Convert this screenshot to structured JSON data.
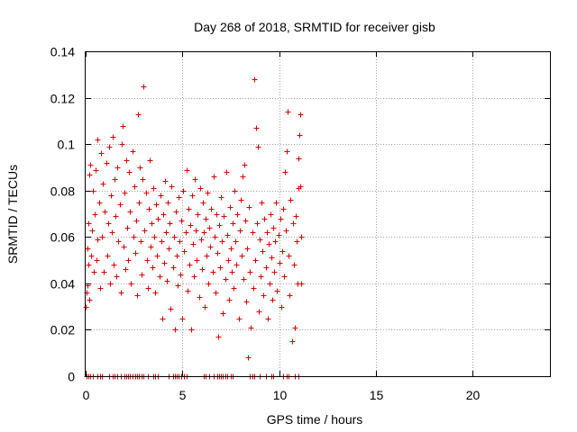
{
  "chart_data": {
    "type": "scatter",
    "title": "Day 268 of 2018, SRMTID for receiver gisb",
    "xlabel": "GPS time / hours",
    "ylabel": "SRMTID / TECUs",
    "xlim": [
      0,
      24
    ],
    "ylim": [
      0,
      0.14
    ],
    "x_ticks": [
      0,
      5,
      10,
      15,
      20
    ],
    "y_ticks": [
      0,
      0.02,
      0.04,
      0.06,
      0.08,
      0.1,
      0.12,
      0.14
    ],
    "x_tick_labels": [
      "0",
      "5",
      "10",
      "15",
      "20"
    ],
    "y_tick_labels": [
      "0",
      "0.02",
      "0.04",
      "0.06",
      "0.08",
      "0.1",
      "0.12",
      "0.14"
    ],
    "grid": true,
    "marker": "+",
    "marker_color": "#dd0000",
    "series": [
      {
        "points": [
          [
            0.02,
            0.03
          ],
          [
            0.05,
            0.036
          ],
          [
            0.08,
            0.039
          ],
          [
            0.1,
            0.055
          ],
          [
            0.12,
            0.066
          ],
          [
            0.15,
            0.048
          ],
          [
            0.18,
            0.087
          ],
          [
            0.2,
            0.033
          ],
          [
            0.25,
            0.091
          ],
          [
            0.28,
            0.052
          ],
          [
            0.32,
            0.063
          ],
          [
            0.35,
            0.08
          ],
          [
            0.4,
            0.045
          ],
          [
            0.45,
            0.07
          ],
          [
            0.5,
            0.089
          ],
          [
            0.55,
            0.05
          ],
          [
            0.6,
            0.102
          ],
          [
            0.62,
            0.059
          ],
          [
            0.7,
            0.075
          ],
          [
            0.75,
            0.038
          ],
          [
            0.8,
            0.096
          ],
          [
            0.85,
            0.06
          ],
          [
            0.9,
            0.083
          ],
          [
            0.95,
            0.045
          ],
          [
            1.0,
            0.071
          ],
          [
            1.05,
            0.092
          ],
          [
            1.1,
            0.052
          ],
          [
            1.15,
            0.066
          ],
          [
            1.2,
            0.099
          ],
          [
            1.25,
            0.04
          ],
          [
            1.3,
            0.078
          ],
          [
            1.35,
            0.062
          ],
          [
            1.4,
            0.103
          ],
          [
            1.45,
            0.048
          ],
          [
            1.5,
            0.085
          ],
          [
            1.55,
            0.069
          ],
          [
            1.6,
            0.043
          ],
          [
            1.65,
            0.09
          ],
          [
            1.7,
            0.058
          ],
          [
            1.75,
            0.074
          ],
          [
            1.8,
            0.036
          ],
          [
            1.85,
            0.1
          ],
          [
            1.9,
            0.108
          ],
          [
            1.95,
            0.056
          ],
          [
            2.0,
            0.079
          ],
          [
            2.05,
            0.046
          ],
          [
            2.1,
            0.093
          ],
          [
            2.15,
            0.064
          ],
          [
            2.2,
            0.05
          ],
          [
            2.25,
            0.088
          ],
          [
            2.3,
            0.071
          ],
          [
            2.35,
            0.04
          ],
          [
            2.4,
            0.097
          ],
          [
            2.45,
            0.06
          ],
          [
            2.5,
            0.082
          ],
          [
            2.55,
            0.053
          ],
          [
            2.6,
            0.067
          ],
          [
            2.65,
            0.035
          ],
          [
            2.7,
            0.113
          ],
          [
            2.75,
            0.075
          ],
          [
            2.8,
            0.09
          ],
          [
            2.85,
            0.058
          ],
          [
            2.9,
            0.044
          ],
          [
            2.95,
            0.085
          ],
          [
            3.0,
            0.125
          ],
          [
            3.05,
            0.063
          ],
          [
            3.1,
            0.079
          ],
          [
            3.15,
            0.05
          ],
          [
            3.2,
            0.038
          ],
          [
            3.25,
            0.072
          ],
          [
            3.3,
            0.093
          ],
          [
            3.35,
            0.056
          ],
          [
            3.4,
            0.066
          ],
          [
            3.45,
            0.047
          ],
          [
            3.5,
            0.081
          ],
          [
            3.55,
            0.06
          ],
          [
            3.6,
            0.036
          ],
          [
            3.65,
            0.074
          ],
          [
            3.7,
            0.052
          ],
          [
            3.75,
            0.068
          ],
          [
            3.8,
            0.043
          ],
          [
            3.85,
            0.078
          ],
          [
            3.9,
            0.058
          ],
          [
            3.95,
            0.025
          ],
          [
            4.0,
            0.07
          ],
          [
            4.05,
            0.049
          ],
          [
            4.1,
            0.084
          ],
          [
            4.15,
            0.062
          ],
          [
            4.2,
            0.041
          ],
          [
            4.25,
            0.075
          ],
          [
            4.3,
            0.055
          ],
          [
            4.35,
            0.066
          ],
          [
            4.4,
            0.029
          ],
          [
            4.45,
            0.082
          ],
          [
            4.5,
            0.047
          ],
          [
            4.55,
            0.06
          ],
          [
            4.6,
            0.02
          ],
          [
            4.65,
            0.071
          ],
          [
            4.7,
            0.052
          ],
          [
            4.75,
            0.039
          ],
          [
            4.8,
            0.077
          ],
          [
            4.85,
            0.058
          ],
          [
            4.9,
            0.044
          ],
          [
            4.95,
            0.067
          ],
          [
            5.0,
            0.025
          ],
          [
            5.05,
            0.08
          ],
          [
            5.1,
            0.054
          ],
          [
            5.15,
            0.062
          ],
          [
            5.2,
            0.089
          ],
          [
            5.25,
            0.037
          ],
          [
            5.3,
            0.072
          ],
          [
            5.35,
            0.048
          ],
          [
            5.4,
            0.065
          ],
          [
            5.45,
            0.02
          ],
          [
            5.5,
            0.078
          ],
          [
            5.55,
            0.057
          ],
          [
            5.6,
            0.043
          ],
          [
            5.65,
            0.085
          ],
          [
            5.7,
            0.063
          ],
          [
            5.75,
            0.05
          ],
          [
            5.8,
            0.07
          ],
          [
            5.85,
            0.034
          ],
          [
            5.9,
            0.081
          ],
          [
            5.95,
            0.059
          ],
          [
            6.0,
            0.046
          ],
          [
            6.05,
            0.075
          ],
          [
            6.1,
            0.062
          ],
          [
            6.15,
            0.03
          ],
          [
            6.2,
            0.068
          ],
          [
            6.25,
            0.052
          ],
          [
            6.3,
            0.079
          ],
          [
            6.35,
            0.04
          ],
          [
            6.4,
            0.064
          ],
          [
            6.45,
            0.056
          ],
          [
            6.5,
            0.072
          ],
          [
            6.55,
            0.045
          ],
          [
            6.6,
            0.086
          ],
          [
            6.65,
            0.06
          ],
          [
            6.7,
            0.036
          ],
          [
            6.75,
            0.07
          ],
          [
            6.8,
            0.053
          ],
          [
            6.85,
            0.017
          ],
          [
            6.9,
            0.065
          ],
          [
            6.95,
            0.047
          ],
          [
            7.0,
            0.077
          ],
          [
            7.05,
            0.058
          ],
          [
            7.1,
            0.027
          ],
          [
            7.15,
            0.069
          ],
          [
            7.2,
            0.042
          ],
          [
            7.25,
            0.088
          ],
          [
            7.3,
            0.061
          ],
          [
            7.35,
            0.05
          ],
          [
            7.4,
            0.033
          ],
          [
            7.45,
            0.073
          ],
          [
            7.5,
            0.055
          ],
          [
            7.55,
            0.045
          ],
          [
            7.6,
            0.066
          ],
          [
            7.65,
            0.038
          ],
          [
            7.7,
            0.08
          ],
          [
            7.75,
            0.058
          ],
          [
            7.8,
            0.048
          ],
          [
            7.85,
            0.07
          ],
          [
            7.9,
            0.025
          ],
          [
            7.95,
            0.063
          ],
          [
            8.0,
            0.076
          ],
          [
            8.05,
            0.052
          ],
          [
            8.1,
            0.086
          ],
          [
            8.15,
            0.042
          ],
          [
            8.2,
            0.091
          ],
          [
            8.25,
            0.067
          ],
          [
            8.3,
            0.032
          ],
          [
            8.35,
            0.055
          ],
          [
            8.4,
            0.008
          ],
          [
            8.45,
            0.073
          ],
          [
            8.5,
            0.045
          ],
          [
            8.55,
            0.021
          ],
          [
            8.6,
            0.062
          ],
          [
            8.65,
            0.038
          ],
          [
            8.7,
            0.128
          ],
          [
            8.75,
            0.05
          ],
          [
            8.8,
            0.107
          ],
          [
            8.85,
            0.066
          ],
          [
            8.9,
            0.099
          ],
          [
            8.95,
            0.028
          ],
          [
            9.0,
            0.059
          ],
          [
            9.05,
            0.043
          ],
          [
            9.1,
            0.075
          ],
          [
            9.15,
            0.054
          ],
          [
            9.2,
            0.035
          ],
          [
            9.25,
            0.068
          ],
          [
            9.3,
            0.047
          ],
          [
            9.35,
            0.062
          ],
          [
            9.4,
            0.025
          ],
          [
            9.45,
            0.057
          ],
          [
            9.5,
            0.04
          ],
          [
            9.55,
            0.07
          ],
          [
            9.6,
            0.051
          ],
          [
            9.65,
            0.033
          ],
          [
            9.7,
            0.064
          ],
          [
            9.75,
            0.045
          ],
          [
            9.8,
            0.058
          ],
          [
            9.85,
            0.075
          ],
          [
            9.9,
            0.037
          ],
          [
            9.95,
            0.061
          ],
          [
            10.0,
            0.049
          ],
          [
            10.05,
            0.068
          ],
          [
            10.1,
            0.03
          ],
          [
            10.15,
            0.054
          ],
          [
            10.2,
            0.072
          ],
          [
            10.25,
            0.043
          ],
          [
            10.3,
            0.088
          ],
          [
            10.35,
            0.063
          ],
          [
            10.4,
            0.097
          ],
          [
            10.45,
            0.114
          ],
          [
            10.5,
            0.052
          ],
          [
            10.55,
            0.035
          ],
          [
            10.6,
            0.076
          ],
          [
            10.65,
            0.015
          ],
          [
            10.7,
            0.066
          ],
          [
            10.75,
            0.048
          ],
          [
            10.8,
            0.021
          ],
          [
            10.85,
            0.069
          ],
          [
            10.9,
            0.058
          ],
          [
            10.95,
            0.04
          ],
          [
            11.0,
            0.081
          ],
          [
            11.02,
            0.094
          ],
          [
            11.05,
            0.104
          ],
          [
            11.08,
            0.113
          ],
          [
            11.1,
            0.082
          ],
          [
            11.12,
            0.04
          ],
          [
            11.15,
            0.06
          ]
        ]
      }
    ],
    "zero_points_x": [
      0.05,
      0.15,
      0.25,
      0.35,
      0.6,
      0.75,
      0.85,
      1.2,
      1.4,
      1.5,
      1.65,
      1.8,
      2.0,
      2.1,
      2.2,
      2.3,
      2.4,
      2.55,
      2.65,
      2.75,
      2.9,
      3.0,
      3.2,
      3.5,
      3.6,
      3.75,
      4.3,
      4.5,
      4.6,
      4.7,
      4.8,
      4.95,
      5.1,
      5.2,
      6.1,
      6.2,
      6.4,
      6.6,
      6.8,
      6.9,
      7.0,
      7.1,
      7.2,
      7.3,
      7.5,
      7.6,
      8.5,
      8.6,
      8.7,
      9.0,
      9.3,
      9.6,
      9.7,
      10.2,
      10.4,
      10.5,
      10.8,
      11.0
    ]
  }
}
